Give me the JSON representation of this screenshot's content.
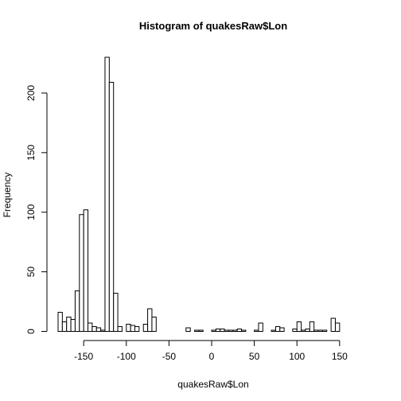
{
  "chart_data": {
    "type": "bar",
    "title": "Histogram of quakesRaw$Lon",
    "xlabel": "quakesRaw$Lon",
    "ylabel": "Frequency",
    "bin_width": 5,
    "x_start": -180,
    "xlim": [
      -180,
      180
    ],
    "ylim": [
      0,
      230
    ],
    "x_ticks": [
      -150,
      -100,
      -50,
      0,
      50,
      100,
      150
    ],
    "y_ticks": [
      0,
      50,
      100,
      150,
      200
    ],
    "values": [
      16,
      8,
      12,
      10,
      34,
      98,
      102,
      7,
      4,
      3,
      1,
      230,
      209,
      32,
      4,
      0,
      6,
      5,
      4,
      0,
      6,
      19,
      12,
      0,
      0,
      0,
      0,
      0,
      0,
      0,
      3,
      0,
      1,
      1,
      0,
      0,
      1,
      2,
      2,
      1,
      1,
      1,
      2,
      1,
      0,
      0,
      1,
      7,
      0,
      0,
      1,
      4,
      3,
      0,
      0,
      2,
      8,
      1,
      2,
      8,
      1,
      1,
      1,
      0,
      11,
      7
    ],
    "grid": false,
    "legend": "none"
  }
}
